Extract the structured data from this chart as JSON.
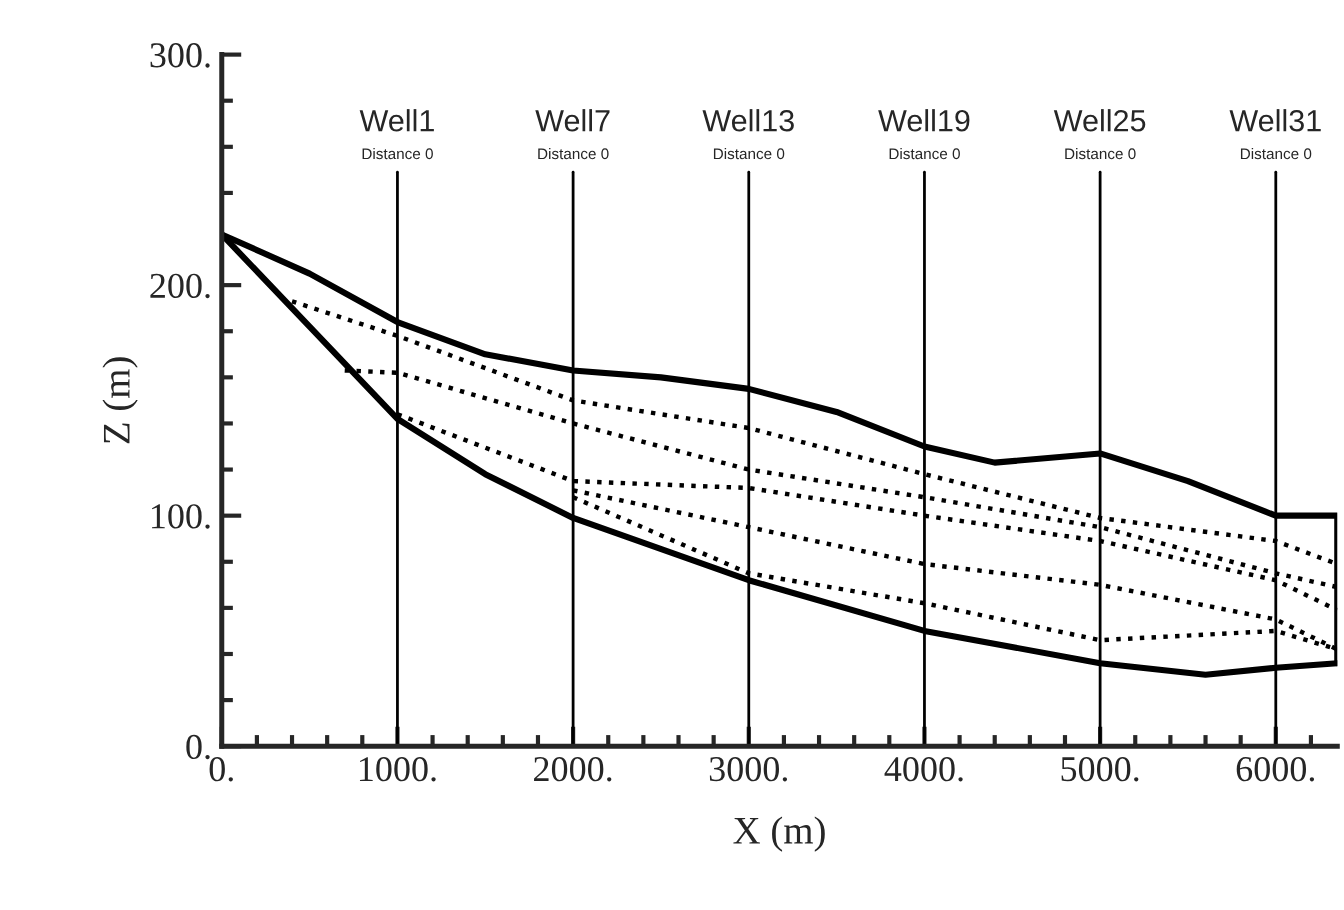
{
  "chart_data": {
    "type": "line",
    "xlabel": "X (m)",
    "ylabel": "Z (m)",
    "xlim": [
      0,
      6350
    ],
    "ylim": [
      0,
      300
    ],
    "xticks": [
      {
        "value": 0,
        "label": "0."
      },
      {
        "value": 1000,
        "label": "1000."
      },
      {
        "value": 2000,
        "label": "2000."
      },
      {
        "value": 3000,
        "label": "3000."
      },
      {
        "value": 4000,
        "label": "4000."
      },
      {
        "value": 5000,
        "label": "5000."
      },
      {
        "value": 6000,
        "label": "6000."
      }
    ],
    "yticks": [
      {
        "value": 0,
        "label": "0."
      },
      {
        "value": 100,
        "label": "100."
      },
      {
        "value": 200,
        "label": "200."
      },
      {
        "value": 300,
        "label": "300."
      }
    ],
    "grid": false,
    "legend": false,
    "marker": "none",
    "series": [
      {
        "color": "#000000",
        "line_style": "solid",
        "x": [
          0,
          500,
          1000,
          1500,
          2000,
          2500,
          3000,
          3500,
          4000,
          4400,
          5000,
          5500,
          6000,
          6350,
          6350
        ],
        "values": [
          222,
          205,
          184,
          170,
          163,
          160,
          155,
          145,
          130,
          123,
          127,
          115,
          100,
          100,
          36
        ]
      },
      {
        "color": "#000000",
        "line_style": "solid",
        "x": [
          0,
          500,
          1000,
          1500,
          2000,
          3000,
          4000,
          5000,
          5600,
          6000,
          6350
        ],
        "values": [
          222,
          182,
          142,
          118,
          99,
          72,
          50,
          36,
          31,
          34,
          36
        ]
      },
      {
        "color": "#000000",
        "line_style": "dotted",
        "x": [
          400,
          1000,
          2000,
          3000,
          4000,
          5000,
          6000,
          6350
        ],
        "values": [
          193,
          178,
          150,
          138,
          118,
          99,
          89,
          79
        ]
      },
      {
        "color": "#000000",
        "line_style": "dotted",
        "x": [
          700,
          1000,
          2000,
          3000,
          4000,
          5000,
          6000,
          6350
        ],
        "values": [
          163,
          162,
          140,
          120,
          108,
          95,
          75,
          69
        ]
      },
      {
        "color": "#000000",
        "line_style": "dotted",
        "x": [
          1000,
          2000,
          3000,
          4000,
          5000,
          6000,
          6350
        ],
        "values": [
          144,
          115,
          112,
          100,
          89,
          72,
          59
        ]
      },
      {
        "color": "#000000",
        "line_style": "dotted",
        "x": [
          2000,
          3000,
          4000,
          5000,
          6000,
          6350
        ],
        "values": [
          111,
          95,
          79,
          70,
          55,
          42
        ]
      },
      {
        "color": "#000000",
        "line_style": "dotted",
        "x": [
          2000,
          3000,
          4000,
          5000,
          6000,
          6350
        ],
        "values": [
          108,
          75,
          62,
          46,
          50,
          42
        ]
      }
    ],
    "ref_lines": [
      {
        "axis": "x",
        "value": 1000,
        "label": "Well1\nDistance 0"
      },
      {
        "axis": "x",
        "value": 2000,
        "label": "Well7\nDistance 0"
      },
      {
        "axis": "x",
        "value": 3000,
        "label": "Well13\nDistance 0"
      },
      {
        "axis": "x",
        "value": 4000,
        "label": "Well19\nDistance 0"
      },
      {
        "axis": "x",
        "value": 5000,
        "label": "Well25\nDistance 0"
      },
      {
        "axis": "x",
        "value": 6000,
        "label": "Well31\nDistance 0"
      }
    ]
  }
}
